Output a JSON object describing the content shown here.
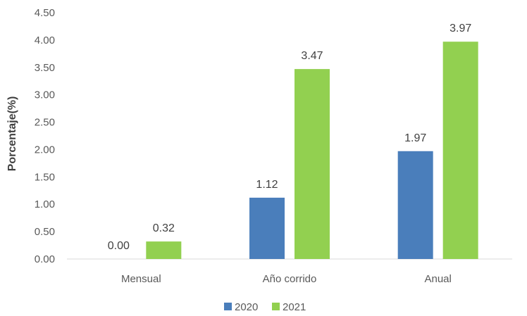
{
  "chart_data": {
    "type": "bar",
    "title": "",
    "xlabel": "",
    "ylabel": "Porcentaje(%)",
    "ylim": [
      0,
      4.5
    ],
    "ytick_step": 0.5,
    "ytick_decimals": 2,
    "grid": false,
    "legend_position": "bottom",
    "categories": [
      "Mensual",
      "Año corrido",
      "Anual"
    ],
    "series": [
      {
        "name": "2020",
        "color": "#4a7ebb",
        "values": [
          0.0,
          1.12,
          1.97
        ],
        "labels": [
          "0.00",
          "1.12",
          "1.97"
        ]
      },
      {
        "name": "2021",
        "color": "#92d050",
        "values": [
          0.32,
          3.47,
          3.97
        ],
        "labels": [
          "0.32",
          "3.47",
          "3.97"
        ]
      }
    ]
  }
}
